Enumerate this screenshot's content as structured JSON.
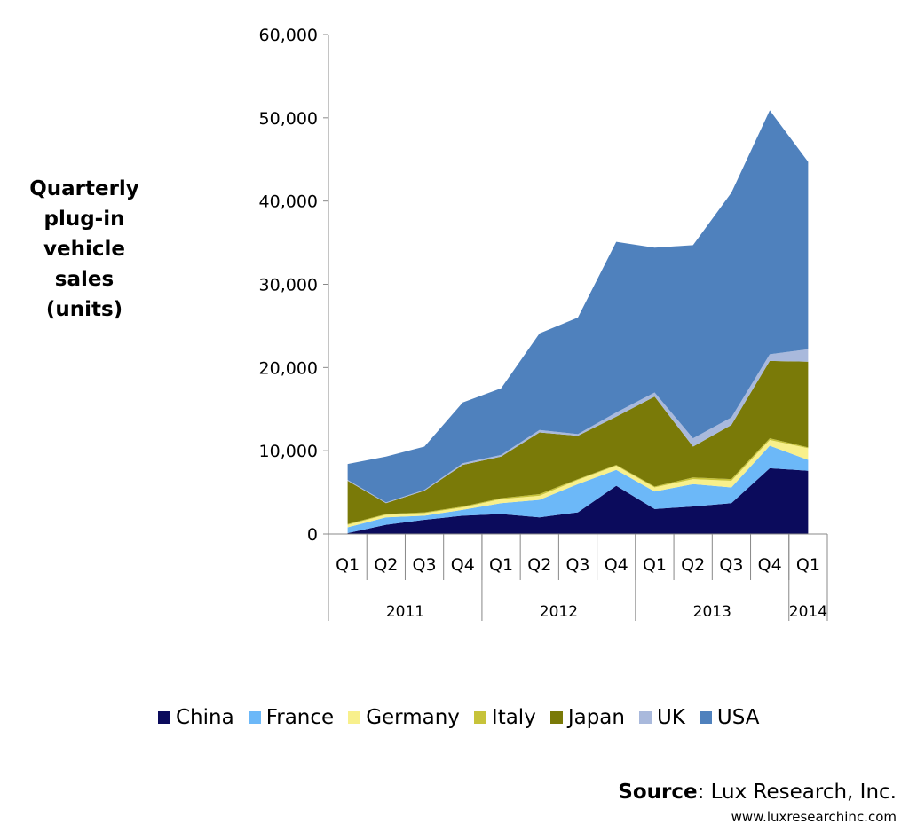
{
  "chart_data": {
    "type": "area",
    "stacked": true,
    "title": "",
    "ylabel_lines": [
      "Quarterly",
      "plug-in",
      "vehicle",
      "sales",
      "(units)"
    ],
    "xlabel": "",
    "ylim": [
      0,
      60000
    ],
    "yticks": [
      0,
      10000,
      20000,
      30000,
      40000,
      50000,
      60000
    ],
    "ytick_labels": [
      "0",
      "10,000",
      "20,000",
      "30,000",
      "40,000",
      "50,000",
      "60,000"
    ],
    "categories": [
      "Q1",
      "Q2",
      "Q3",
      "Q4",
      "Q1",
      "Q2",
      "Q3",
      "Q4",
      "Q1",
      "Q2",
      "Q3",
      "Q4",
      "Q1"
    ],
    "years": [
      {
        "label": "2011",
        "quarters": 4
      },
      {
        "label": "2012",
        "quarters": 4
      },
      {
        "label": "2013",
        "quarters": 4
      },
      {
        "label": "2014",
        "quarters": 1
      }
    ],
    "series": [
      {
        "name": "China",
        "color": "#0b0b5c",
        "values": [
          100,
          1100,
          1700,
          2200,
          2400,
          2000,
          2600,
          5800,
          3000,
          3300,
          3700,
          7900,
          7600
        ]
      },
      {
        "name": "France",
        "color": "#6cb8f8",
        "values": [
          700,
          900,
          500,
          700,
          1300,
          2100,
          3400,
          1900,
          2100,
          2700,
          1900,
          2700,
          1300
        ]
      },
      {
        "name": "Germany",
        "color": "#f8f08c",
        "values": [
          300,
          300,
          300,
          300,
          500,
          500,
          500,
          500,
          500,
          600,
          800,
          700,
          1400
        ]
      },
      {
        "name": "Italy",
        "color": "#c7c33a",
        "values": [
          100,
          100,
          100,
          100,
          100,
          200,
          100,
          100,
          100,
          200,
          200,
          200,
          100
        ]
      },
      {
        "name": "Japan",
        "color": "#7a7a08",
        "values": [
          5200,
          1300,
          2600,
          5000,
          5000,
          7400,
          5200,
          5800,
          10800,
          3700,
          6500,
          9300,
          10300
        ]
      },
      {
        "name": "UK",
        "color": "#a9b9dc",
        "values": [
          100,
          100,
          100,
          200,
          200,
          300,
          200,
          500,
          500,
          1000,
          900,
          800,
          1500
        ]
      },
      {
        "name": "USA",
        "color": "#4f81bd",
        "values": [
          1900,
          5500,
          5200,
          7300,
          8000,
          11600,
          14000,
          20500,
          17400,
          23200,
          27000,
          29300,
          22500
        ]
      }
    ]
  },
  "source": {
    "label": "Source",
    "separator": ":",
    "text": " Lux Research, Inc.",
    "url": "www.luxresearchinc.com"
  }
}
